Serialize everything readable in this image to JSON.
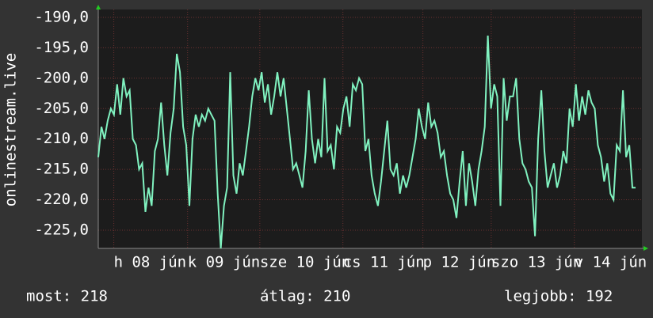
{
  "chart_data": {
    "type": "line",
    "y_label": "onlinestream.live",
    "ylim": [
      -228,
      -188.7
    ],
    "yticks": [
      {
        "value": -190,
        "label": "-190,0"
      },
      {
        "value": -195,
        "label": "-195,0"
      },
      {
        "value": -200,
        "label": "-200,0"
      },
      {
        "value": -205,
        "label": "-205,0"
      },
      {
        "value": -210,
        "label": "-210,0"
      },
      {
        "value": -215,
        "label": "-215,0"
      },
      {
        "value": -220,
        "label": "-220,0"
      },
      {
        "value": -225,
        "label": "-225,0"
      }
    ],
    "xlim": [
      0,
      7
    ],
    "xticks": [
      {
        "value": 0.2,
        "label": "h 08 jún"
      },
      {
        "value": 1.15,
        "label": "k 09 jún"
      },
      {
        "value": 2.08,
        "label": "sze 10 jún"
      },
      {
        "value": 3.15,
        "label": "cs 11 jún"
      },
      {
        "value": 4.18,
        "label": "p 12 jún"
      },
      {
        "value": 5.06,
        "label": "szo 13 jún"
      },
      {
        "value": 6.13,
        "label": "v 14 jún"
      }
    ],
    "grid": true,
    "series": [
      {
        "color": "#80f2c0",
        "values": [
          -213,
          -208,
          -210,
          -207,
          -205,
          -206,
          -201,
          -206,
          -200,
          -203,
          -202,
          -210,
          -211,
          -215,
          -214,
          -222,
          -218,
          -221,
          -212,
          -210,
          -204,
          -211,
          -216,
          -209,
          -205,
          -196,
          -199,
          -208,
          -211,
          -221,
          -210,
          -206,
          -208,
          -206,
          -207,
          -205,
          -206,
          -207,
          -219,
          -228,
          -221,
          -218,
          -199,
          -216,
          -219,
          -214,
          -216,
          -212,
          -208,
          -203,
          -200,
          -202,
          -199,
          -204,
          -201,
          -206,
          -203,
          -199,
          -203,
          -200,
          -205,
          -210,
          -215,
          -214,
          -216,
          -218,
          -212,
          -202,
          -210,
          -214,
          -210,
          -213,
          -200,
          -212,
          -211,
          -215,
          -208,
          -209,
          -205,
          -203,
          -208,
          -201,
          -202,
          -200,
          -201,
          -212,
          -210,
          -216,
          -219,
          -221,
          -217,
          -212,
          -207,
          -215,
          -216,
          -214,
          -219,
          -216,
          -218,
          -216,
          -213,
          -210,
          -205,
          -208,
          -210,
          -204,
          -208,
          -207,
          -209,
          -213,
          -212,
          -216,
          -219,
          -220,
          -223,
          -217,
          -212,
          -221,
          -214,
          -217,
          -221,
          -215,
          -212,
          -208,
          -193,
          -205,
          -201,
          -203,
          -221,
          -200,
          -207,
          -203,
          -203,
          -200,
          -210,
          -214,
          -215,
          -217,
          -218,
          -226,
          -210,
          -202,
          -212,
          -218,
          -216,
          -214,
          -218,
          -216,
          -212,
          -214,
          -205,
          -208,
          -201,
          -207,
          -203,
          -206,
          -202,
          -204,
          -205,
          -211,
          -213,
          -217,
          -214,
          -219,
          -220,
          -211,
          -212,
          -202,
          -213,
          -211,
          -218,
          -218
        ]
      }
    ],
    "stats": [
      "most: 218",
      "átlag: 210",
      "legjobb: 192"
    ]
  }
}
